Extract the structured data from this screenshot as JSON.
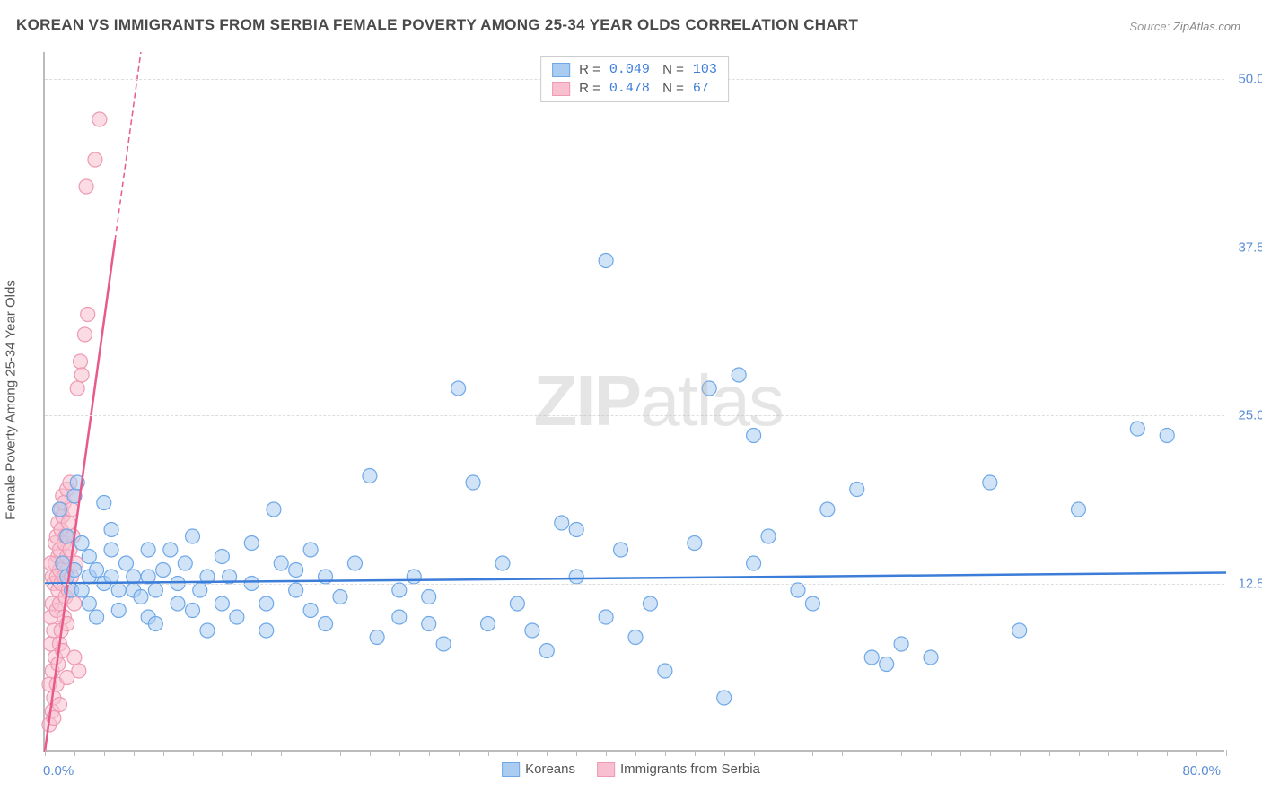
{
  "title": "KOREAN VS IMMIGRANTS FROM SERBIA FEMALE POVERTY AMONG 25-34 YEAR OLDS CORRELATION CHART",
  "source_label": "Source:",
  "source_value": "ZipAtlas.com",
  "watermark_a": "ZIP",
  "watermark_b": "atlas",
  "y_axis_label": "Female Poverty Among 25-34 Year Olds",
  "chart": {
    "type": "scatter",
    "x_domain": [
      0,
      80
    ],
    "y_domain": [
      0,
      52
    ],
    "y_ticks": [
      12.5,
      25.0,
      37.5,
      50.0
    ],
    "y_tick_labels": [
      "12.5%",
      "25.0%",
      "37.5%",
      "50.0%"
    ],
    "x_origin_label": "0.0%",
    "x_end_label": "80.0%",
    "x_tick_interval": 2,
    "grid_color": "#dddddd",
    "axis_color": "#bbbbbb",
    "background": "#ffffff",
    "marker_radius": 8,
    "marker_stroke_width": 1.2,
    "trend_line_width": 2.5,
    "series": [
      {
        "id": "koreans",
        "label": "Koreans",
        "fill": "#aaccf0",
        "stroke": "#6fa8e8",
        "fill_opacity": 0.55,
        "R": "0.049",
        "N": "103",
        "trend": {
          "x1": 0,
          "y1": 12.5,
          "x2": 80,
          "y2": 13.3,
          "color": "#3b7dd8",
          "dash": ""
        },
        "points": [
          [
            1,
            18
          ],
          [
            1.2,
            14
          ],
          [
            1.5,
            13
          ],
          [
            1.5,
            16
          ],
          [
            1.8,
            12
          ],
          [
            2,
            13.5
          ],
          [
            2,
            19
          ],
          [
            2.2,
            20
          ],
          [
            2.5,
            12
          ],
          [
            2.5,
            15.5
          ],
          [
            3,
            11
          ],
          [
            3,
            13
          ],
          [
            3,
            14.5
          ],
          [
            3.5,
            13.5
          ],
          [
            3.5,
            10
          ],
          [
            4,
            18.5
          ],
          [
            4,
            12.5
          ],
          [
            4.5,
            13
          ],
          [
            4.5,
            15
          ],
          [
            4.5,
            16.5
          ],
          [
            5,
            10.5
          ],
          [
            5,
            12
          ],
          [
            5.5,
            14
          ],
          [
            6,
            13
          ],
          [
            6,
            12
          ],
          [
            6.5,
            11.5
          ],
          [
            7,
            13
          ],
          [
            7,
            15
          ],
          [
            7,
            10
          ],
          [
            7.5,
            12
          ],
          [
            7.5,
            9.5
          ],
          [
            8,
            13.5
          ],
          [
            8.5,
            15
          ],
          [
            9,
            11
          ],
          [
            9,
            12.5
          ],
          [
            9.5,
            14
          ],
          [
            10,
            16
          ],
          [
            10,
            10.5
          ],
          [
            10.5,
            12
          ],
          [
            11,
            13
          ],
          [
            11,
            9
          ],
          [
            12,
            11
          ],
          [
            12,
            14.5
          ],
          [
            12.5,
            13
          ],
          [
            13,
            10
          ],
          [
            14,
            12.5
          ],
          [
            14,
            15.5
          ],
          [
            15,
            11
          ],
          [
            15,
            9
          ],
          [
            15.5,
            18
          ],
          [
            16,
            14
          ],
          [
            17,
            12
          ],
          [
            17,
            13.5
          ],
          [
            18,
            10.5
          ],
          [
            18,
            15
          ],
          [
            19,
            9.5
          ],
          [
            19,
            13
          ],
          [
            20,
            11.5
          ],
          [
            21,
            14
          ],
          [
            22,
            20.5
          ],
          [
            22.5,
            8.5
          ],
          [
            24,
            10
          ],
          [
            24,
            12
          ],
          [
            25,
            13
          ],
          [
            26,
            9.5
          ],
          [
            26,
            11.5
          ],
          [
            27,
            8
          ],
          [
            28,
            27
          ],
          [
            29,
            20
          ],
          [
            30,
            9.5
          ],
          [
            31,
            14
          ],
          [
            32,
            11
          ],
          [
            33,
            9
          ],
          [
            34,
            7.5
          ],
          [
            35,
            17
          ],
          [
            36,
            16.5
          ],
          [
            36,
            13
          ],
          [
            38,
            36.5
          ],
          [
            38,
            10
          ],
          [
            39,
            15
          ],
          [
            40,
            8.5
          ],
          [
            41,
            11
          ],
          [
            42,
            6
          ],
          [
            44,
            15.5
          ],
          [
            45,
            27
          ],
          [
            46,
            4
          ],
          [
            47,
            28
          ],
          [
            48,
            23.5
          ],
          [
            48,
            14
          ],
          [
            49,
            16
          ],
          [
            51,
            12
          ],
          [
            52,
            11
          ],
          [
            53,
            18
          ],
          [
            55,
            19.5
          ],
          [
            56,
            7
          ],
          [
            57,
            6.5
          ],
          [
            58,
            8
          ],
          [
            60,
            7
          ],
          [
            64,
            20
          ],
          [
            66,
            9
          ],
          [
            70,
            18
          ],
          [
            74,
            24
          ],
          [
            76,
            23.5
          ]
        ]
      },
      {
        "id": "serbia",
        "label": "Immigrants from Serbia",
        "fill": "#f7bfcf",
        "stroke": "#ed9ab2",
        "fill_opacity": 0.55,
        "R": "0.478",
        "N": "67",
        "trend": {
          "x1": 0,
          "y1": 0,
          "x2": 6.5,
          "y2": 52,
          "color": "#e85a8a",
          "dash": "6 4",
          "solid_until_y": 38
        },
        "points": [
          [
            0.3,
            2
          ],
          [
            0.3,
            5
          ],
          [
            0.4,
            8
          ],
          [
            0.4,
            10
          ],
          [
            0.5,
            3
          ],
          [
            0.5,
            6
          ],
          [
            0.5,
            11
          ],
          [
            0.5,
            13
          ],
          [
            0.6,
            4
          ],
          [
            0.6,
            9
          ],
          [
            0.6,
            12.5
          ],
          [
            0.7,
            7
          ],
          [
            0.7,
            14
          ],
          [
            0.7,
            15.5
          ],
          [
            0.8,
            5
          ],
          [
            0.8,
            10.5
          ],
          [
            0.8,
            13
          ],
          [
            0.8,
            16
          ],
          [
            0.9,
            6.5
          ],
          [
            0.9,
            12
          ],
          [
            0.9,
            14.5
          ],
          [
            0.9,
            17
          ],
          [
            1.0,
            8
          ],
          [
            1.0,
            11
          ],
          [
            1.0,
            13.5
          ],
          [
            1.0,
            15
          ],
          [
            1.1,
            9
          ],
          [
            1.1,
            12.5
          ],
          [
            1.1,
            16.5
          ],
          [
            1.1,
            18
          ],
          [
            1.2,
            7.5
          ],
          [
            1.2,
            14
          ],
          [
            1.2,
            17.5
          ],
          [
            1.2,
            19
          ],
          [
            1.3,
            10
          ],
          [
            1.3,
            13
          ],
          [
            1.3,
            15.5
          ],
          [
            1.3,
            18.5
          ],
          [
            1.4,
            11.5
          ],
          [
            1.4,
            16
          ],
          [
            1.5,
            9.5
          ],
          [
            1.5,
            14.5
          ],
          [
            1.5,
            19.5
          ],
          [
            1.6,
            12
          ],
          [
            1.6,
            17
          ],
          [
            1.7,
            15
          ],
          [
            1.7,
            20
          ],
          [
            1.8,
            13
          ],
          [
            1.8,
            18
          ],
          [
            1.9,
            16
          ],
          [
            2.0,
            11
          ],
          [
            2.0,
            19
          ],
          [
            2.1,
            14
          ],
          [
            2.2,
            27
          ],
          [
            2.4,
            29
          ],
          [
            2.5,
            28
          ],
          [
            2.7,
            31
          ],
          [
            2.3,
            6
          ],
          [
            1.0,
            3.5
          ],
          [
            0.6,
            2.5
          ],
          [
            1.5,
            5.5
          ],
          [
            2.0,
            7
          ],
          [
            2.8,
            42
          ],
          [
            3.4,
            44
          ],
          [
            3.7,
            47
          ],
          [
            2.9,
            32.5
          ],
          [
            0.4,
            14
          ]
        ]
      }
    ]
  }
}
